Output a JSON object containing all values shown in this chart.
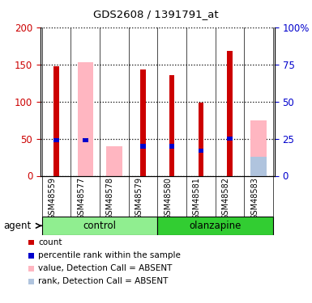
{
  "title": "GDS2608 / 1391791_at",
  "samples": [
    "GSM48559",
    "GSM48577",
    "GSM48578",
    "GSM48579",
    "GSM48580",
    "GSM48581",
    "GSM48582",
    "GSM48583"
  ],
  "red_values": [
    147,
    0,
    0,
    143,
    136,
    98,
    168,
    0
  ],
  "blue_values": [
    48,
    48,
    0,
    40,
    40,
    34,
    50,
    0
  ],
  "pink_values": [
    0,
    153,
    40,
    0,
    0,
    0,
    0,
    75
  ],
  "lb_values": [
    0,
    0,
    0,
    0,
    0,
    0,
    0,
    26
  ],
  "control_color": "#90EE90",
  "olanzapine_color": "#32CD32",
  "color_red": "#CC0000",
  "color_blue": "#0000CC",
  "color_pink": "#FFB6C1",
  "color_lb": "#B0C4DE",
  "ylim_left": [
    0,
    200
  ],
  "ylim_right": [
    0,
    100
  ],
  "yticks_left": [
    0,
    50,
    100,
    150,
    200
  ],
  "yticks_right": [
    0,
    25,
    50,
    75,
    100
  ],
  "ytick_labels_right": [
    "0",
    "25",
    "50",
    "75",
    "100%"
  ],
  "legend_items": [
    {
      "label": "count",
      "color": "#CC0000"
    },
    {
      "label": "percentile rank within the sample",
      "color": "#0000CC"
    },
    {
      "label": "value, Detection Call = ABSENT",
      "color": "#FFB6C1"
    },
    {
      "label": "rank, Detection Call = ABSENT",
      "color": "#B0C4DE"
    }
  ]
}
